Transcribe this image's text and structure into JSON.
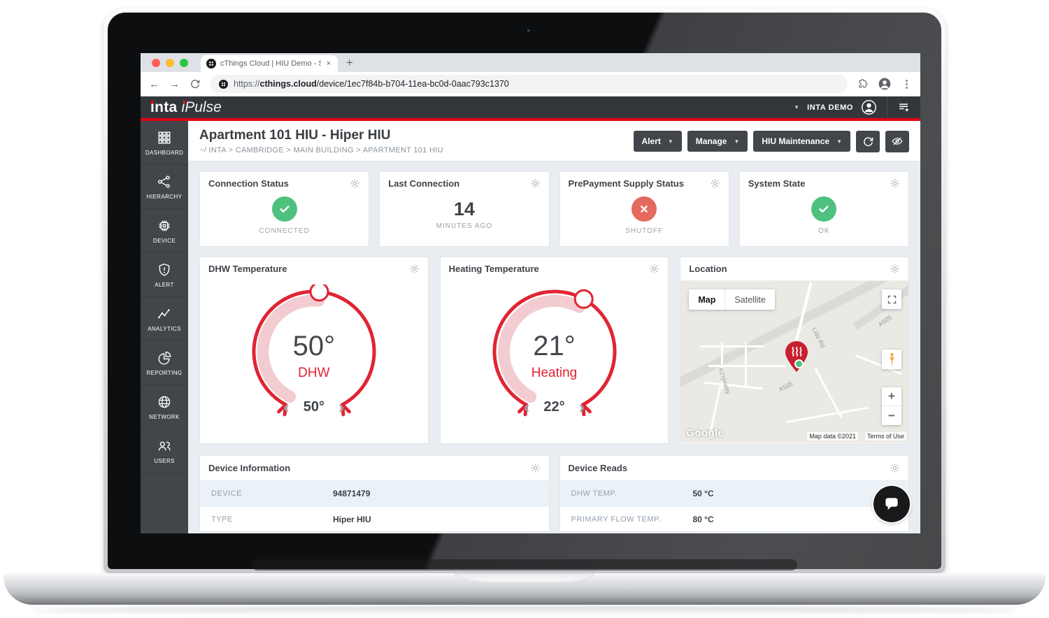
{
  "browser": {
    "tab_title": "cThings Cloud | HIU Demo - Sn",
    "close_tab": "×",
    "new_tab": "+",
    "url_scheme": "https://",
    "url_domain": "cthings.cloud",
    "url_path": "/device/1ec7f84b-b704-11ea-bc0d-0aac793c1370"
  },
  "navbar": {
    "brand_primary": "inta",
    "brand_secondary": "iPulse",
    "account_label": "INTA DEMO"
  },
  "sidebar": {
    "items": [
      {
        "label": "DASHBOARD",
        "icon": "grid-icon"
      },
      {
        "label": "HIERARCHY",
        "icon": "hierarchy-icon"
      },
      {
        "label": "DEVICE",
        "icon": "chip-icon"
      },
      {
        "label": "ALERT",
        "icon": "shield-alert-icon"
      },
      {
        "label": "ANALYTICS",
        "icon": "line-chart-icon"
      },
      {
        "label": "REPORTING",
        "icon": "pie-chart-icon"
      },
      {
        "label": "NETWORK",
        "icon": "globe-icon"
      },
      {
        "label": "USERS",
        "icon": "users-icon"
      }
    ]
  },
  "page": {
    "title": "Apartment 101 HIU - Hiper HIU",
    "breadcrumb": "~/  INTA  >  CAMBRIDGE  >  MAIN BUILDING  >  APARTMENT 101 HIU",
    "actions": {
      "alert": "Alert",
      "manage": "Manage",
      "maintenance": "HIU Maintenance"
    }
  },
  "status_cards": {
    "connection": {
      "title": "Connection Status",
      "label": "CONNECTED",
      "state": "ok"
    },
    "last_connection": {
      "title": "Last Connection",
      "value": "14",
      "label": "MINUTES AGO"
    },
    "prepayment": {
      "title": "PrePayment Supply Status",
      "label": "SHUTOFF",
      "state": "shutoff"
    },
    "system": {
      "title": "System State",
      "label": "OK",
      "state": "ok"
    }
  },
  "gauges": {
    "dhw": {
      "title": "DHW Temperature",
      "value": "50°",
      "label": "DHW",
      "setpoint": "50°"
    },
    "heating": {
      "title": "Heating Temperature",
      "value": "21°",
      "label": "Heating",
      "setpoint": "22°"
    }
  },
  "map": {
    "title": "Location",
    "map_button": "Map",
    "satellite_button": "Satellite",
    "google_logo": "Google",
    "attribution": "Map data ©2021",
    "terms": "Terms of Use",
    "zoom_in": "+",
    "zoom_out": "−",
    "road_label_a505_1": "A505",
    "road_label_a505_2": "A505",
    "road_label_kingsway": "Kingsway",
    "road_label_lido": "Lido Rd"
  },
  "tables": {
    "device_info": {
      "title": "Device Information",
      "rows": [
        {
          "label": "DEVICE",
          "value": "94871479"
        },
        {
          "label": "TYPE",
          "value": "Hiper HIU"
        }
      ]
    },
    "device_reads": {
      "title": "Device Reads",
      "rows": [
        {
          "label": "DHW TEMP.",
          "value": "50 °C"
        },
        {
          "label": "PRIMARY FLOW TEMP.",
          "value": "80 °C"
        }
      ]
    }
  },
  "icons": {
    "gear-icon": "settings cog, light gray",
    "check-icon": "white checkmark in green circle",
    "x-icon": "white cross in red circle",
    "refresh-icon": "circular arrow",
    "eye-off-icon": "hidden / eye with slash",
    "marker-heat-icon": "red map pin with heat waves",
    "chat-icon": "white speech bubble on dark circle"
  },
  "colors": {
    "accent_red": "#e30613",
    "gauge_red": "#e02433",
    "gauge_pink": "#f2ccd1",
    "green": "#4ec17e",
    "alert_red": "#e4695f",
    "navbar_dark": "#33363b",
    "sidebar_dark": "#42464b"
  }
}
